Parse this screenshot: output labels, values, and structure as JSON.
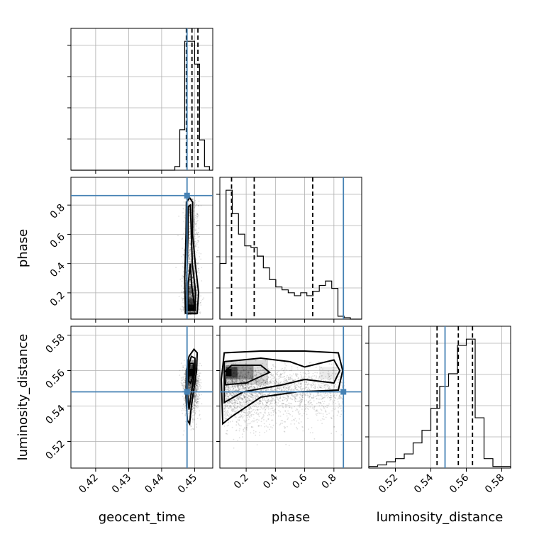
{
  "chart_data": {
    "type": "corner",
    "parameters": [
      "geocent_time",
      "phase",
      "luminosity_distance"
    ],
    "ranges": {
      "geocent_time": [
        0.4125,
        0.4555
      ],
      "phase": [
        0.02,
        0.99
      ],
      "luminosity_distance": [
        0.505,
        0.585
      ]
    },
    "ticks": {
      "geocent_time": [
        "0.42",
        "0.43",
        "0.44",
        "0.45"
      ],
      "phase_x": [
        "0.2",
        "0.4",
        "0.6",
        "0.8"
      ],
      "phase_y": [
        "0.2",
        "0.4",
        "0.6",
        "0.8"
      ],
      "luminosity_distance": [
        "0.52",
        "0.54",
        "0.56",
        "0.58"
      ]
    },
    "truths": {
      "geocent_time": 0.4477,
      "phase": 0.865,
      "luminosity_distance": 0.548
    },
    "quantiles": {
      "geocent_time": [
        0.4475,
        0.4492,
        0.451
      ],
      "phase": [
        0.1,
        0.255,
        0.655
      ],
      "luminosity_distance": [
        0.5435,
        0.5555,
        0.5635
      ]
    },
    "histograms": {
      "geocent_time": {
        "edges": [
          0.444,
          0.4455,
          0.447,
          0.4485,
          0.45,
          0.4515,
          0.453,
          0.4545
        ],
        "counts": [
          0.5,
          5.5,
          17.5,
          17.5,
          14.4,
          4.1,
          0.5
        ]
      },
      "phase": {
        "edges": [
          0.02,
          0.0625,
          0.105,
          0.1475,
          0.19,
          0.2325,
          0.275,
          0.3175,
          0.36,
          0.4025,
          0.445,
          0.4875,
          0.53,
          0.5725,
          0.615,
          0.6575,
          0.7,
          0.7425,
          0.785,
          0.8275,
          0.87,
          0.9125,
          0.955
        ],
        "counts": [
          3.8,
          8.8,
          7.2,
          5.8,
          5.0,
          4.9,
          4.3,
          3.5,
          2.7,
          2.2,
          2.0,
          1.8,
          1.6,
          1.8,
          1.6,
          1.9,
          2.3,
          2.6,
          2.1,
          0.2,
          0.1,
          0.0
        ]
      },
      "luminosity_distance": {
        "edges": [
          0.505,
          0.51,
          0.515,
          0.52,
          0.525,
          0.53,
          0.535,
          0.54,
          0.545,
          0.55,
          0.555,
          0.56,
          0.565,
          0.57,
          0.575,
          0.58,
          0.585
        ],
        "counts": [
          0.05,
          0.1,
          0.2,
          0.3,
          0.45,
          0.8,
          1.2,
          1.9,
          2.6,
          3.0,
          3.9,
          4.1,
          1.6,
          0.3,
          0.05,
          0.05
        ]
      }
    }
  }
}
